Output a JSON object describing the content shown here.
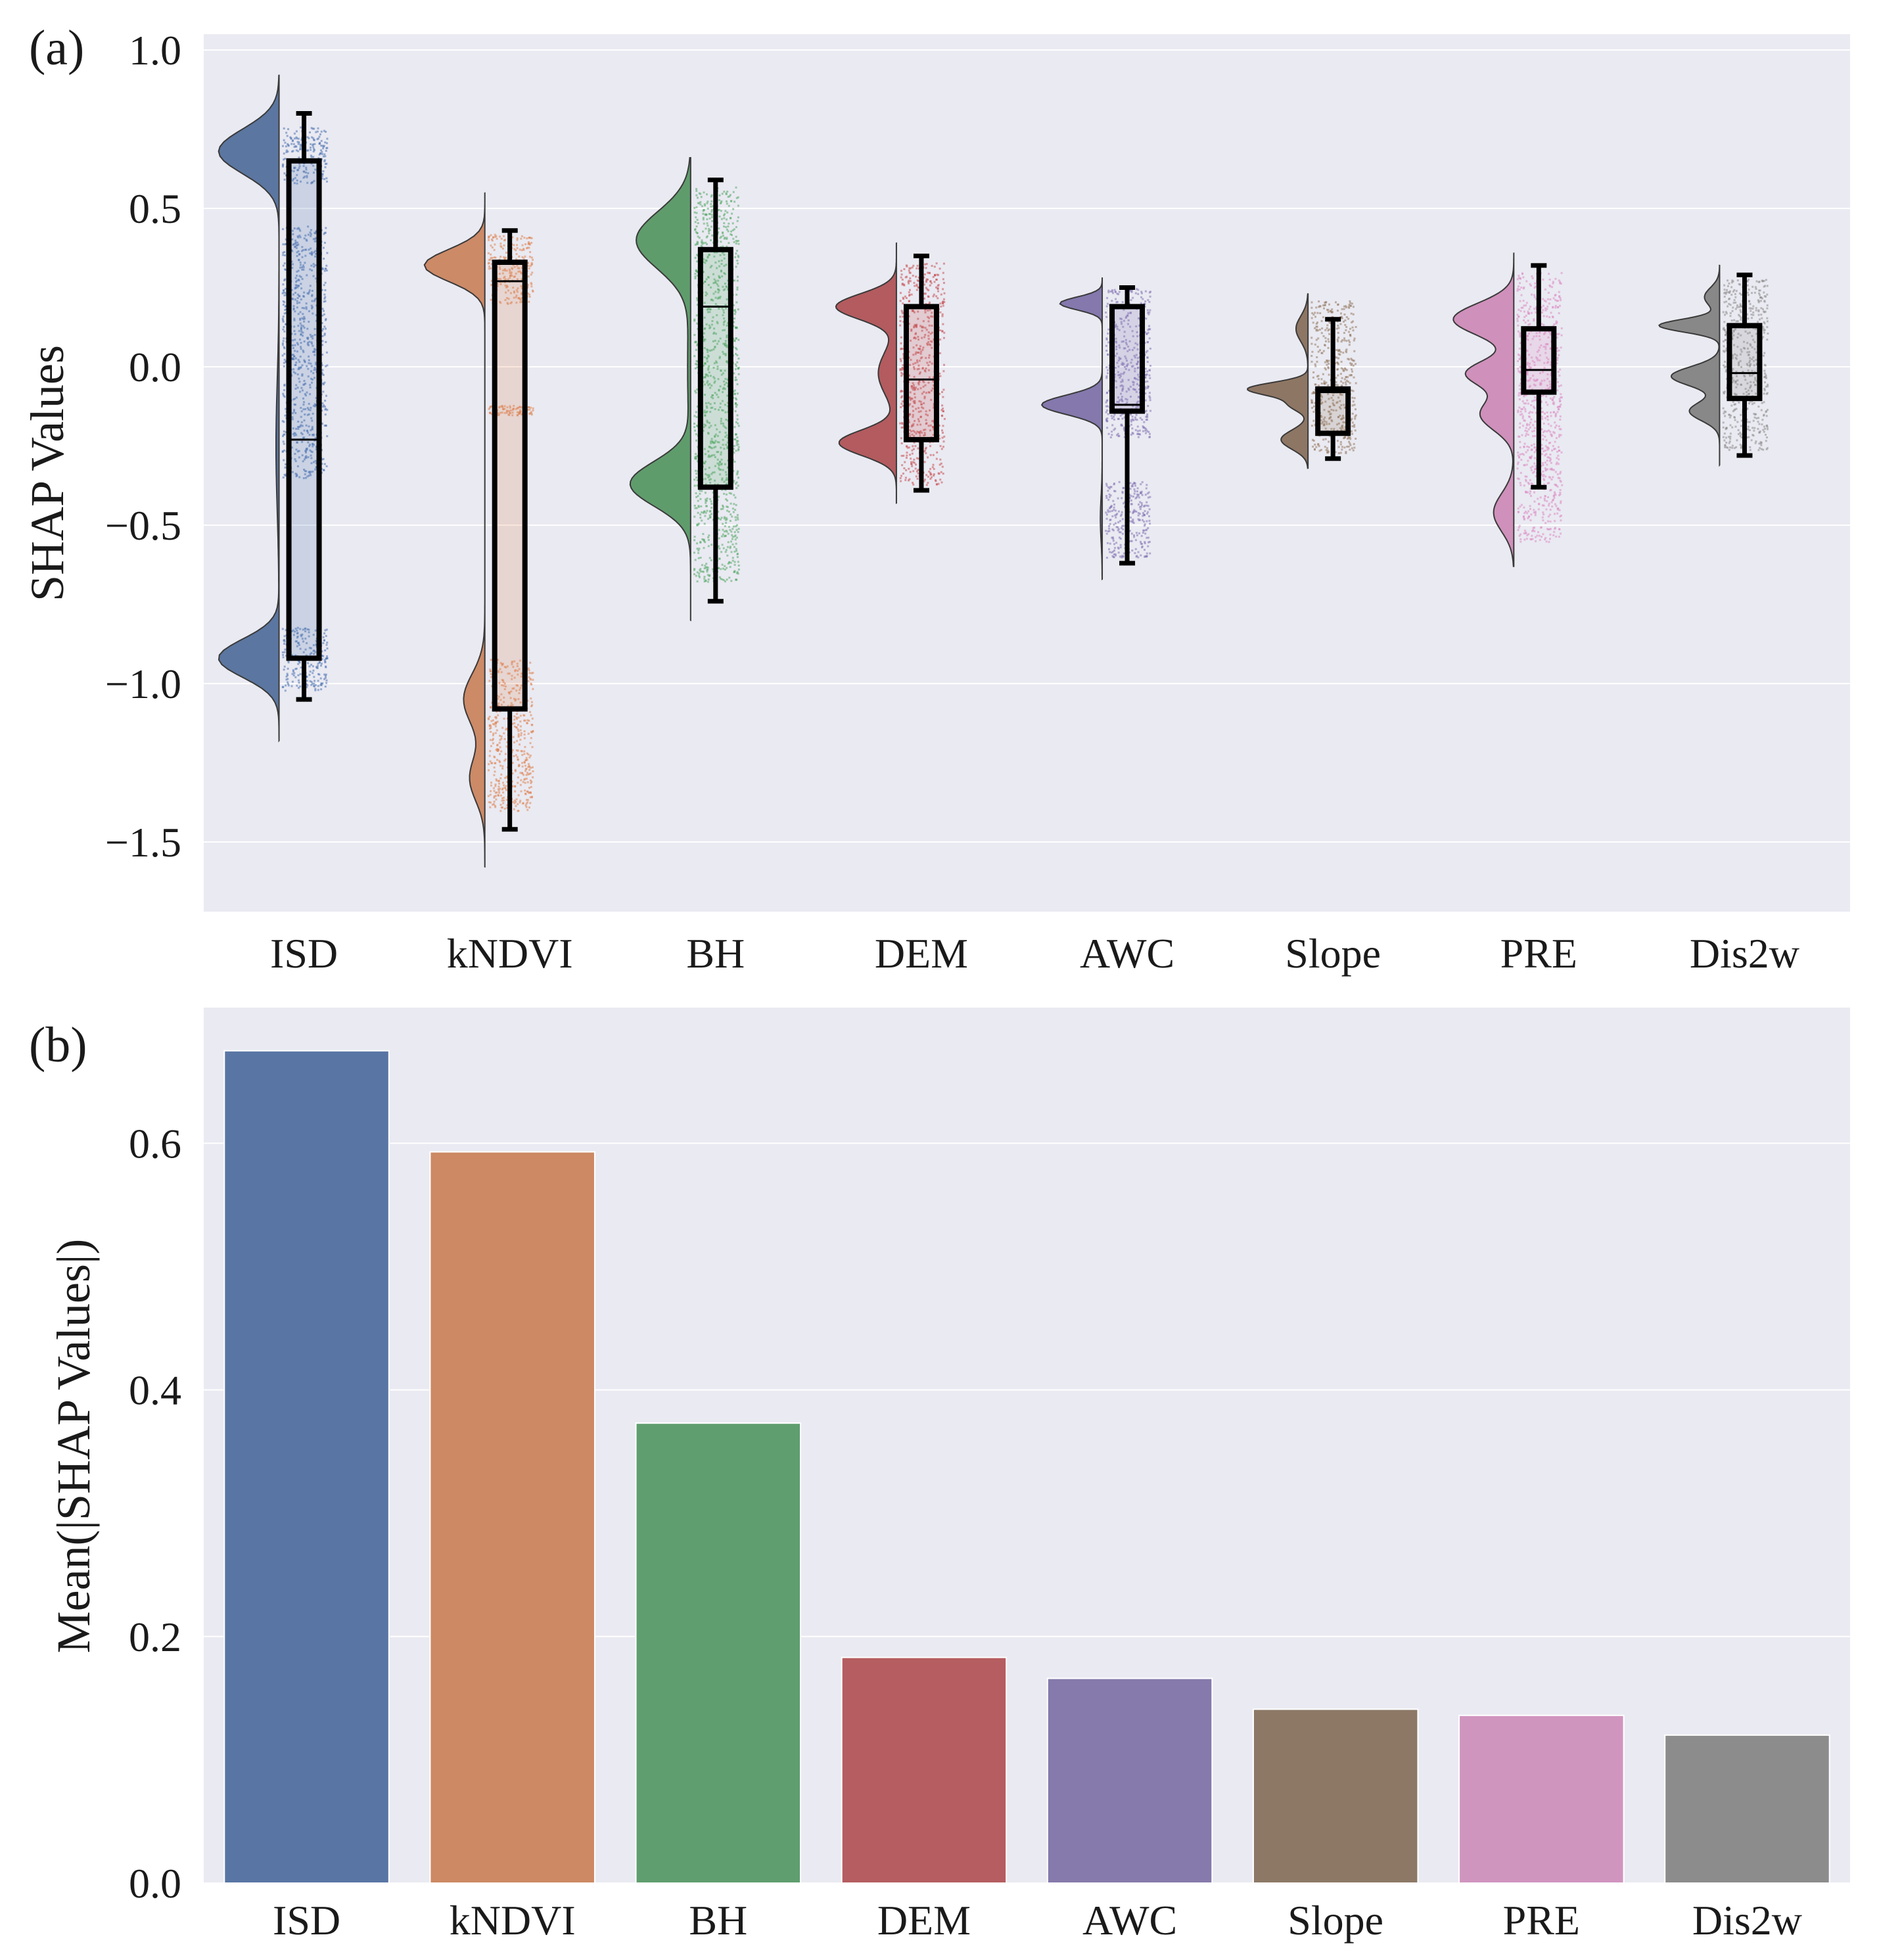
{
  "figure": {
    "panel_a_label": "(a)",
    "panel_b_label": "(b)"
  },
  "chart_data": [
    {
      "type": "raincloud",
      "panel": "(a)",
      "title": "",
      "xlabel": "",
      "ylabel": "SHAP Values",
      "ylim": [
        -1.72,
        1.05
      ],
      "yticks": [
        1.0,
        0.5,
        0.0,
        -0.5,
        -1.0,
        -1.5
      ],
      "ytick_labels": [
        "1.0",
        "0.5",
        "0.0",
        "−0.5",
        "−1.0",
        "−1.5"
      ],
      "grid": true,
      "categories": [
        "ISD",
        "kNDVI",
        "BH",
        "DEM",
        "AWC",
        "Slope",
        "PRE",
        "Dis2w"
      ],
      "colors": [
        "#4c72b0",
        "#dd8452",
        "#55a868",
        "#c44e52",
        "#8172b3",
        "#937860",
        "#da8bc3",
        "#8c8c8c"
      ],
      "violin_colors": [
        "#5b76a0",
        "#cc8a67",
        "#5f9c6c",
        "#b35b5f",
        "#8478ad",
        "#8e7664",
        "#cf90bb",
        "#888888"
      ],
      "box": [
        {
          "whisker_low": -1.05,
          "q1": -0.92,
          "median": -0.23,
          "q3": 0.65,
          "whisker_high": 0.8
        },
        {
          "whisker_low": -1.46,
          "q1": -1.08,
          "median": 0.27,
          "q3": 0.33,
          "whisker_high": 0.43
        },
        {
          "whisker_low": -0.74,
          "q1": -0.38,
          "median": 0.19,
          "q3": 0.37,
          "whisker_high": 0.59
        },
        {
          "whisker_low": -0.39,
          "q1": -0.23,
          "median": -0.04,
          "q3": 0.19,
          "whisker_high": 0.35
        },
        {
          "whisker_low": -0.62,
          "q1": -0.14,
          "median": -0.12,
          "q3": 0.19,
          "whisker_high": 0.25
        },
        {
          "whisker_low": -0.29,
          "q1": -0.21,
          "median": -0.08,
          "q3": -0.07,
          "whisker_high": 0.15
        },
        {
          "whisker_low": -0.38,
          "q1": -0.08,
          "median": -0.01,
          "q3": 0.12,
          "whisker_high": 0.32
        },
        {
          "whisker_low": -0.28,
          "q1": -0.1,
          "median": -0.02,
          "q3": 0.13,
          "whisker_high": 0.29
        }
      ],
      "density": [
        {
          "range": [
            -1.18,
            0.92
          ],
          "modes": [
            {
              "at": 0.68,
              "width": 0.07,
              "amp": 1.0
            },
            {
              "at": -0.92,
              "width": 0.06,
              "amp": 1.0
            },
            {
              "at": -0.25,
              "width": 0.2,
              "amp": 0.05
            }
          ]
        },
        {
          "range": [
            -1.58,
            0.55
          ],
          "modes": [
            {
              "at": 0.32,
              "width": 0.05,
              "amp": 1.0
            },
            {
              "at": -1.05,
              "width": 0.08,
              "amp": 0.35
            },
            {
              "at": -1.3,
              "width": 0.07,
              "amp": 0.25
            }
          ]
        },
        {
          "range": [
            -0.8,
            0.66
          ],
          "modes": [
            {
              "at": 0.4,
              "width": 0.09,
              "amp": 0.9
            },
            {
              "at": -0.37,
              "width": 0.07,
              "amp": 1.0
            },
            {
              "at": 0.0,
              "width": 0.2,
              "amp": 0.05
            }
          ]
        },
        {
          "range": [
            -0.43,
            0.39
          ],
          "modes": [
            {
              "at": 0.19,
              "width": 0.04,
              "amp": 1.0
            },
            {
              "at": -0.24,
              "width": 0.04,
              "amp": 0.95
            },
            {
              "at": -0.02,
              "width": 0.07,
              "amp": 0.3
            }
          ]
        },
        {
          "range": [
            -0.67,
            0.28
          ],
          "modes": [
            {
              "at": 0.2,
              "width": 0.02,
              "amp": 0.7
            },
            {
              "at": -0.12,
              "width": 0.03,
              "amp": 1.0
            },
            {
              "at": -0.48,
              "width": 0.07,
              "amp": 0.03
            }
          ]
        },
        {
          "range": [
            -0.32,
            0.23
          ],
          "modes": [
            {
              "at": -0.07,
              "width": 0.02,
              "amp": 1.0
            },
            {
              "at": -0.23,
              "width": 0.03,
              "amp": 0.45
            },
            {
              "at": 0.12,
              "width": 0.04,
              "amp": 0.2
            },
            {
              "at": -0.12,
              "width": 0.02,
              "amp": 0.3
            }
          ]
        },
        {
          "range": [
            -0.63,
            0.36
          ],
          "modes": [
            {
              "at": 0.15,
              "width": 0.05,
              "amp": 0.9
            },
            {
              "at": -0.02,
              "width": 0.04,
              "amp": 0.7
            },
            {
              "at": -0.15,
              "width": 0.05,
              "amp": 0.5
            },
            {
              "at": -0.46,
              "width": 0.06,
              "amp": 0.3
            }
          ]
        },
        {
          "range": [
            -0.31,
            0.32
          ],
          "modes": [
            {
              "at": 0.13,
              "width": 0.02,
              "amp": 1.0
            },
            {
              "at": -0.03,
              "width": 0.03,
              "amp": 0.8
            },
            {
              "at": -0.14,
              "width": 0.03,
              "amp": 0.5
            },
            {
              "at": 0.22,
              "width": 0.03,
              "amp": 0.25
            }
          ]
        }
      ],
      "points": [
        {
          "bands": [
            [
              0.58,
              0.76
            ],
            [
              -0.35,
              0.45
            ],
            [
              -1.02,
              -0.82
            ]
          ]
        },
        {
          "bands": [
            [
              0.2,
              0.42
            ],
            [
              -1.4,
              -0.92
            ],
            [
              -0.15,
              -0.12
            ]
          ]
        },
        {
          "bands": [
            [
              -0.68,
              0.57
            ]
          ]
        },
        {
          "bands": [
            [
              -0.37,
              0.33
            ]
          ]
        },
        {
          "bands": [
            [
              -0.22,
              0.25
            ],
            [
              -0.6,
              -0.36
            ]
          ]
        },
        {
          "bands": [
            [
              -0.27,
              0.21
            ]
          ]
        },
        {
          "bands": [
            [
              -0.55,
              0.3
            ]
          ]
        },
        {
          "bands": [
            [
              -0.26,
              0.28
            ]
          ]
        }
      ]
    },
    {
      "type": "bar",
      "panel": "(b)",
      "title": "",
      "xlabel": "",
      "ylabel": "Mean(|SHAP Values|)",
      "ylim": [
        0,
        0.71
      ],
      "yticks": [
        0.0,
        0.2,
        0.4,
        0.6
      ],
      "ytick_labels": [
        "0.0",
        "0.2",
        "0.4",
        "0.6"
      ],
      "grid": true,
      "categories": [
        "ISD",
        "kNDVI",
        "BH",
        "DEM",
        "AWC",
        "Slope",
        "PRE",
        "Dis2w"
      ],
      "values": [
        0.675,
        0.593,
        0.373,
        0.183,
        0.166,
        0.141,
        0.136,
        0.12
      ],
      "colors": [
        "#5975a4",
        "#cc8963",
        "#5f9e6e",
        "#b55d60",
        "#857aab",
        "#8d7866",
        "#d095bf",
        "#8c8c8c"
      ]
    }
  ]
}
